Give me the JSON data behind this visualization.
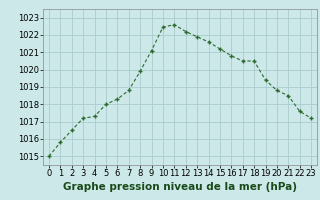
{
  "hours": [
    0,
    1,
    2,
    3,
    4,
    5,
    6,
    7,
    8,
    9,
    10,
    11,
    12,
    13,
    14,
    15,
    16,
    17,
    18,
    19,
    20,
    21,
    22,
    23
  ],
  "pressure": [
    1015.0,
    1015.8,
    1016.5,
    1017.2,
    1017.3,
    1018.0,
    1018.3,
    1018.8,
    1019.9,
    1021.1,
    1022.45,
    1022.6,
    1022.2,
    1021.9,
    1021.6,
    1021.2,
    1020.8,
    1020.5,
    1020.5,
    1019.4,
    1018.8,
    1018.5,
    1017.6,
    1017.2
  ],
  "ylim": [
    1014.5,
    1023.5
  ],
  "yticks": [
    1015,
    1016,
    1017,
    1018,
    1019,
    1020,
    1021,
    1022,
    1023
  ],
  "xticks": [
    0,
    1,
    2,
    3,
    4,
    5,
    6,
    7,
    8,
    9,
    10,
    11,
    12,
    13,
    14,
    15,
    16,
    17,
    18,
    19,
    20,
    21,
    22,
    23
  ],
  "line_color": "#2d6a2d",
  "marker_color": "#2d6a2d",
  "bg_color": "#cce8e8",
  "grid_color": "#aacccc",
  "xlabel": "Graphe pression niveau de la mer (hPa)",
  "xlabel_color": "#1a4a1a",
  "xlabel_fontsize": 7.5,
  "tick_fontsize": 6.0,
  "fig_bg": "#cce8e8"
}
